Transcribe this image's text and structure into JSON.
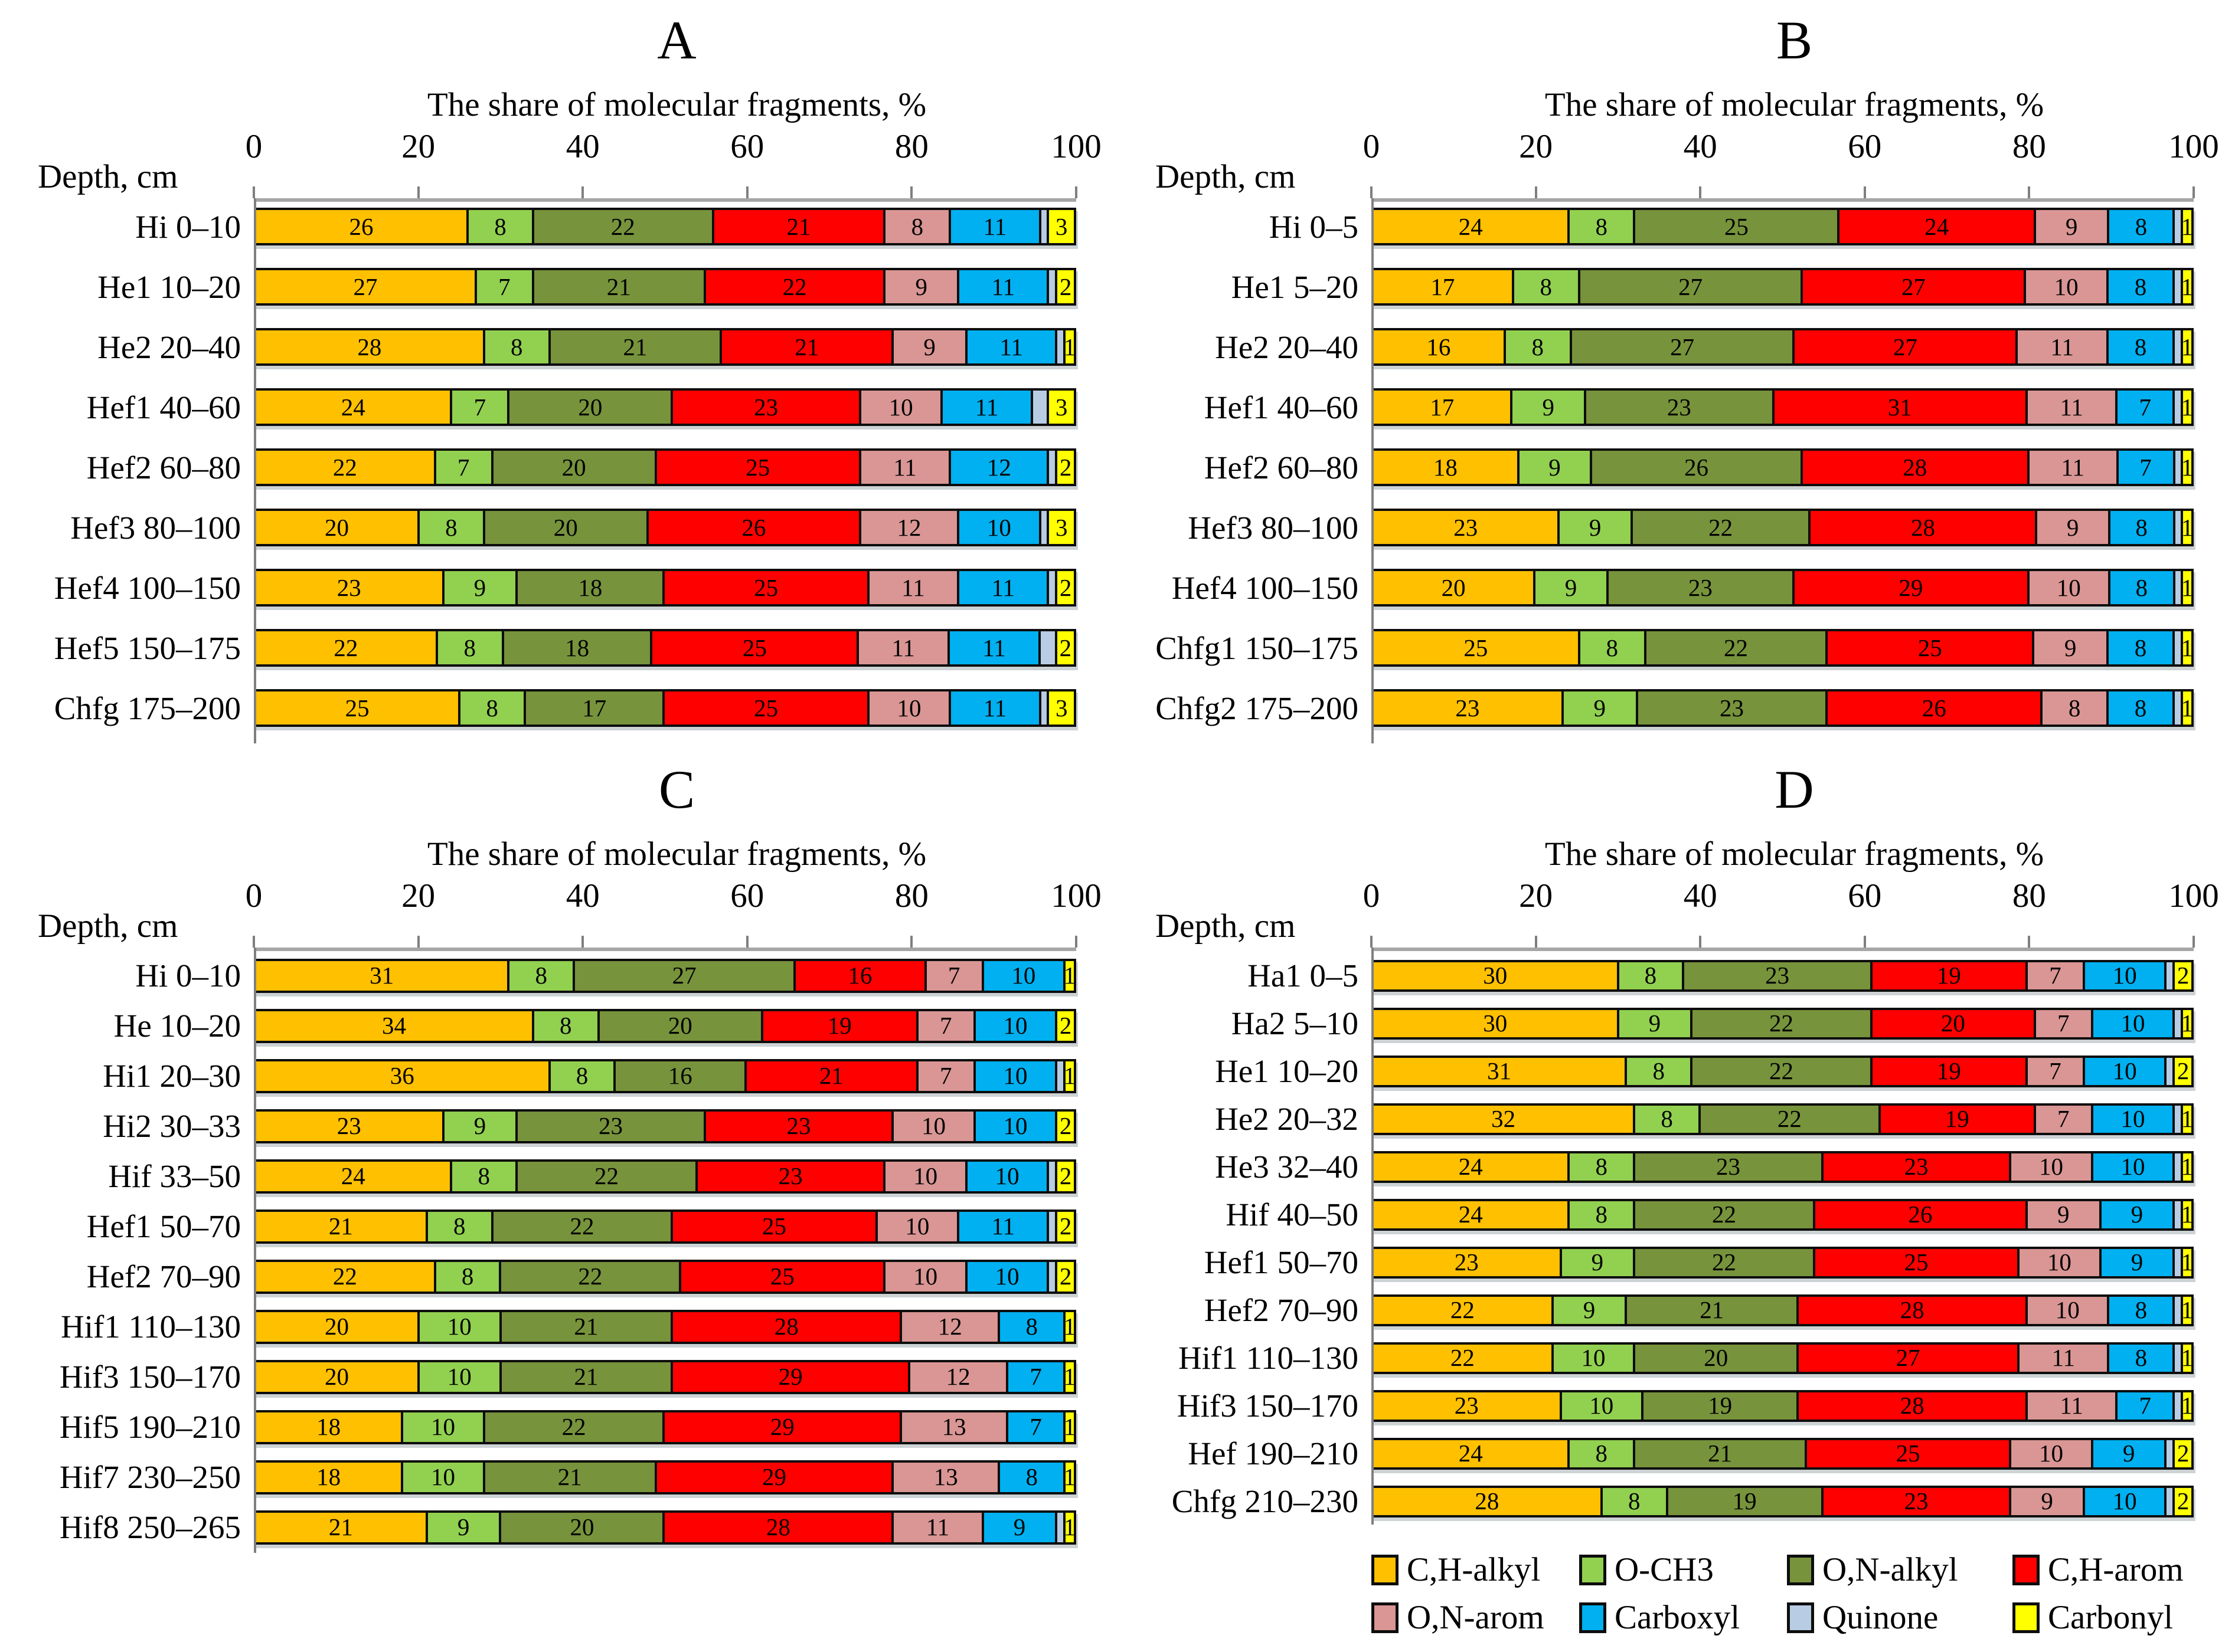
{
  "figure": {
    "background": "#FFFFFF",
    "axis_line_color": "#A6A6A6",
    "bar_border_color": "#0D0D0D"
  },
  "legend": {
    "position": "bottom-of-panel-D",
    "items": [
      {
        "label": "C,H-alkyl",
        "color": "#FFC000"
      },
      {
        "label": "O-CH3",
        "color": "#92D050"
      },
      {
        "label": "O,N-alkyl",
        "color": "#77933C"
      },
      {
        "label": "C,H-arom",
        "color": "#FF0000"
      },
      {
        "label": "O,N-arom",
        "color": "#D99694"
      },
      {
        "label": "Carboxyl",
        "color": "#00B0F0"
      },
      {
        "label": "Quinone",
        "color": "#B8CCE4"
      },
      {
        "label": "Carbonyl",
        "color": "#FFFF00"
      }
    ]
  },
  "chart_data": [
    {
      "id": "A",
      "type": "bar",
      "stacked": true,
      "orientation": "horizontal",
      "title": "A",
      "xlabel": "The share of molecular fragments, %",
      "ylabel": "Depth, cm",
      "xlim": [
        0,
        100
      ],
      "xticks": [
        0,
        20,
        40,
        60,
        80,
        100
      ],
      "grid": false,
      "categories": [
        "Hi 0–10",
        "He1 10–20",
        "He2 20–40",
        "Hef1 40–60",
        "Hef2 60–80",
        "Hef3 80–100",
        "Hef4 100–150",
        "Hef5 150–175",
        "Chfg 175–200"
      ],
      "series": [
        {
          "name": "C,H-alkyl",
          "color": "#FFC000",
          "values": [
            26,
            27,
            28,
            24,
            22,
            20,
            23,
            22,
            25
          ]
        },
        {
          "name": "O-CH3",
          "color": "#92D050",
          "values": [
            8,
            7,
            8,
            7,
            7,
            8,
            9,
            8,
            8
          ]
        },
        {
          "name": "O,N-alkyl",
          "color": "#77933C",
          "values": [
            22,
            21,
            21,
            20,
            20,
            20,
            18,
            18,
            17
          ]
        },
        {
          "name": "C,H-arom",
          "color": "#FF0000",
          "values": [
            21,
            22,
            21,
            23,
            25,
            26,
            25,
            25,
            25
          ]
        },
        {
          "name": "O,N-arom",
          "color": "#D99694",
          "values": [
            8,
            9,
            9,
            10,
            11,
            12,
            11,
            11,
            10
          ]
        },
        {
          "name": "Carboxyl",
          "color": "#00B0F0",
          "values": [
            11,
            11,
            11,
            11,
            12,
            10,
            11,
            11,
            11
          ]
        },
        {
          "name": "Quinone",
          "color": "#B8CCE4",
          "values": [
            1,
            1,
            1,
            2,
            1,
            1,
            1,
            2,
            1
          ]
        },
        {
          "name": "Carbonyl",
          "color": "#FFFF00",
          "values": [
            3,
            2,
            1,
            3,
            2,
            3,
            2,
            2,
            3
          ]
        }
      ]
    },
    {
      "id": "B",
      "type": "bar",
      "stacked": true,
      "orientation": "horizontal",
      "title": "B",
      "xlabel": "The share of molecular fragments, %",
      "ylabel": "Depth, cm",
      "xlim": [
        0,
        100
      ],
      "xticks": [
        0,
        20,
        40,
        60,
        80,
        100
      ],
      "grid": false,
      "categories": [
        "Hi 0–5",
        "He1 5–20",
        "He2 20–40",
        "Hef1 40–60",
        "Hef2 60–80",
        "Hef3 80–100",
        "Hef4 100–150",
        "Chfg1 150–175",
        "Chfg2 175–200"
      ],
      "series": [
        {
          "name": "C,H-alkyl",
          "color": "#FFC000",
          "values": [
            24,
            17,
            16,
            17,
            18,
            23,
            20,
            25,
            23
          ]
        },
        {
          "name": "O-CH3",
          "color": "#92D050",
          "values": [
            8,
            8,
            8,
            9,
            9,
            9,
            9,
            8,
            9
          ]
        },
        {
          "name": "O,N-alkyl",
          "color": "#77933C",
          "values": [
            25,
            27,
            27,
            23,
            26,
            22,
            23,
            22,
            23
          ]
        },
        {
          "name": "C,H-arom",
          "color": "#FF0000",
          "values": [
            24,
            27,
            27,
            31,
            28,
            28,
            29,
            25,
            26
          ]
        },
        {
          "name": "O,N-arom",
          "color": "#D99694",
          "values": [
            9,
            10,
            11,
            11,
            11,
            9,
            10,
            9,
            8
          ]
        },
        {
          "name": "Carboxyl",
          "color": "#00B0F0",
          "values": [
            8,
            8,
            8,
            7,
            7,
            8,
            8,
            8,
            8
          ]
        },
        {
          "name": "Quinone",
          "color": "#B8CCE4",
          "values": [
            1,
            1,
            1,
            1,
            1,
            1,
            1,
            1,
            1
          ]
        },
        {
          "name": "Carbonyl",
          "color": "#FFFF00",
          "values": [
            1,
            1,
            1,
            1,
            1,
            1,
            1,
            1,
            1
          ]
        }
      ]
    },
    {
      "id": "C",
      "type": "bar",
      "stacked": true,
      "orientation": "horizontal",
      "title": "C",
      "xlabel": "The share of molecular fragments, %",
      "ylabel": "Depth, cm",
      "xlim": [
        0,
        100
      ],
      "xticks": [
        0,
        20,
        40,
        60,
        80,
        100
      ],
      "grid": false,
      "categories": [
        "Hi 0–10",
        "He 10–20",
        "Hi1 20–30",
        "Hi2 30–33",
        "Hif 33–50",
        "Hef1 50–70",
        "Hef2 70–90",
        "Hif1 110–130",
        "Hif3 150–170",
        "Hif5 190–210",
        "Hif7 230–250",
        "Hif8 250–265"
      ],
      "series": [
        {
          "name": "C,H-alkyl",
          "color": "#FFC000",
          "values": [
            31,
            34,
            36,
            23,
            24,
            21,
            22,
            20,
            20,
            18,
            18,
            21
          ]
        },
        {
          "name": "O-CH3",
          "color": "#92D050",
          "values": [
            8,
            8,
            8,
            9,
            8,
            8,
            8,
            10,
            10,
            10,
            10,
            9
          ]
        },
        {
          "name": "O,N-alkyl",
          "color": "#77933C",
          "values": [
            27,
            20,
            16,
            23,
            22,
            22,
            22,
            21,
            21,
            22,
            21,
            20
          ]
        },
        {
          "name": "C,H-arom",
          "color": "#FF0000",
          "values": [
            16,
            19,
            21,
            23,
            23,
            25,
            25,
            28,
            29,
            29,
            29,
            28
          ]
        },
        {
          "name": "O,N-arom",
          "color": "#D99694",
          "values": [
            7,
            7,
            7,
            10,
            10,
            10,
            10,
            12,
            12,
            13,
            13,
            11
          ]
        },
        {
          "name": "Carboxyl",
          "color": "#00B0F0",
          "values": [
            10,
            10,
            10,
            10,
            10,
            11,
            10,
            8,
            7,
            7,
            8,
            9
          ]
        },
        {
          "name": "Quinone",
          "color": "#B8CCE4",
          "values": [
            0,
            0,
            1,
            0,
            1,
            1,
            1,
            0,
            0,
            0,
            0,
            1
          ]
        },
        {
          "name": "Carbonyl",
          "color": "#FFFF00",
          "values": [
            1,
            2,
            1,
            2,
            2,
            2,
            2,
            1,
            1,
            1,
            1,
            1
          ]
        }
      ]
    },
    {
      "id": "D",
      "type": "bar",
      "stacked": true,
      "orientation": "horizontal",
      "title": "D",
      "xlabel": "The share of molecular fragments, %",
      "ylabel": "Depth, cm",
      "xlim": [
        0,
        100
      ],
      "xticks": [
        0,
        20,
        40,
        60,
        80,
        100
      ],
      "grid": false,
      "categories": [
        "Ha1 0–5",
        "Ha2 5–10",
        "He1 10–20",
        "He2 20–32",
        "He3 32–40",
        "Hif 40–50",
        "Hef1 50–70",
        "Hef2 70–90",
        "Hif1 110–130",
        "Hif3 150–170",
        "Hef 190–210",
        "Chfg 210–230"
      ],
      "series": [
        {
          "name": "C,H-alkyl",
          "color": "#FFC000",
          "values": [
            30,
            30,
            31,
            32,
            24,
            24,
            23,
            22,
            22,
            23,
            24,
            28
          ]
        },
        {
          "name": "O-CH3",
          "color": "#92D050",
          "values": [
            8,
            9,
            8,
            8,
            8,
            8,
            9,
            9,
            10,
            10,
            8,
            8
          ]
        },
        {
          "name": "O,N-alkyl",
          "color": "#77933C",
          "values": [
            23,
            22,
            22,
            22,
            23,
            22,
            22,
            21,
            20,
            19,
            21,
            19
          ]
        },
        {
          "name": "C,H-arom",
          "color": "#FF0000",
          "values": [
            19,
            20,
            19,
            19,
            23,
            26,
            25,
            28,
            27,
            28,
            25,
            23
          ]
        },
        {
          "name": "O,N-arom",
          "color": "#D99694",
          "values": [
            7,
            7,
            7,
            7,
            10,
            9,
            10,
            10,
            11,
            11,
            10,
            9
          ]
        },
        {
          "name": "Carboxyl",
          "color": "#00B0F0",
          "values": [
            10,
            10,
            10,
            10,
            10,
            9,
            9,
            8,
            8,
            7,
            9,
            10
          ]
        },
        {
          "name": "Quinone",
          "color": "#B8CCE4",
          "values": [
            1,
            1,
            1,
            1,
            1,
            1,
            1,
            1,
            1,
            1,
            1,
            1
          ]
        },
        {
          "name": "Carbonyl",
          "color": "#FFFF00",
          "values": [
            2,
            1,
            2,
            1,
            1,
            1,
            1,
            1,
            1,
            1,
            2,
            2
          ]
        }
      ]
    }
  ]
}
